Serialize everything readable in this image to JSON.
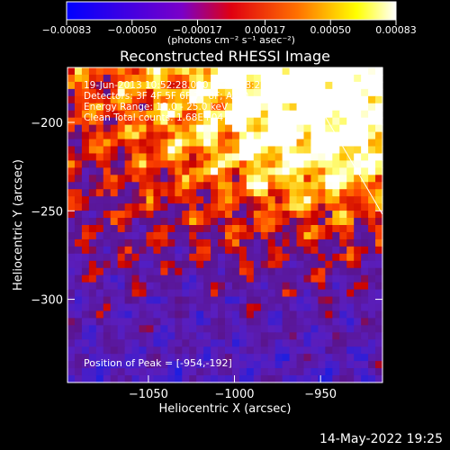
{
  "chart_data": {
    "type": "heatmap",
    "title": "Reconstructed RHESSI Image",
    "xlabel": "Heliocentric X (arcsec)",
    "ylabel": "Heliocentric Y (arcsec)",
    "xlim": [
      -1097,
      -914
    ],
    "ylim": [
      -347,
      -169
    ],
    "x_ticks": [
      -1050,
      -1000,
      -950
    ],
    "x_tick_labels": [
      "−1050",
      "−1000",
      "−950"
    ],
    "y_ticks": [
      -200,
      -250,
      -300
    ],
    "y_tick_labels": [
      "−200",
      "−250",
      "−300"
    ],
    "colorbar": {
      "units_label": "(photons cm⁻² s⁻¹ asec⁻²)",
      "range": [
        -0.00083,
        0.00083
      ],
      "ticks": [
        -0.00083,
        -0.0005,
        -0.00017,
        0.00017,
        0.0005,
        0.00083
      ],
      "tick_labels": [
        "−0.00083",
        "−0.00050",
        "−0.00017",
        "0.00017",
        "0.00050",
        "0.00083"
      ],
      "colors": [
        "#0000ff",
        "#8000c0",
        "#ff0000",
        "#ff8000",
        "#ffff00",
        "#ffffff"
      ]
    },
    "annotations": [
      "19-Jun-2013 10:52:28.000 to 10:58:28.000",
      "Detectors: 3F 4F 5F 6F 7F 8F; Att 0",
      "Energy Range: 12.0 - 25.0 keV",
      "Clean    Total counts: 1.68E+04"
    ],
    "peak_label": "Position of Peak = [-954,-192]",
    "peak": {
      "x": -954,
      "y": -192
    },
    "limb_line": {
      "x1": -964,
      "y1": -169,
      "x2": -914,
      "y2": -252
    }
  },
  "timestamp": "14-May-2022 19:25"
}
